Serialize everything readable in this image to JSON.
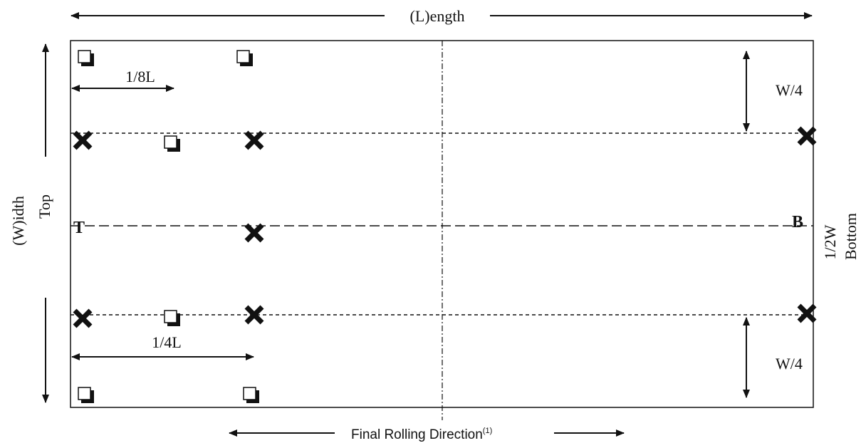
{
  "labels": {
    "length": "(L)ength",
    "width": "(W)idth",
    "top": "Top",
    "bottom": "Bottom",
    "half_width": "1/2W",
    "quarter_width_top": "W/4",
    "quarter_width_bottom": "W/4",
    "eighth_length": "1/8L",
    "quarter_length": "1/4L",
    "top_marker": "T",
    "bottom_marker": "B",
    "rolling_direction": "Final Rolling Direction",
    "rolling_direction_footnote": "(1)"
  },
  "legend_symbols": {
    "cross": "x-mark-icon",
    "square": "square-specimen-icon"
  },
  "colors": {
    "ink": "#111111",
    "background": "#ffffff"
  }
}
